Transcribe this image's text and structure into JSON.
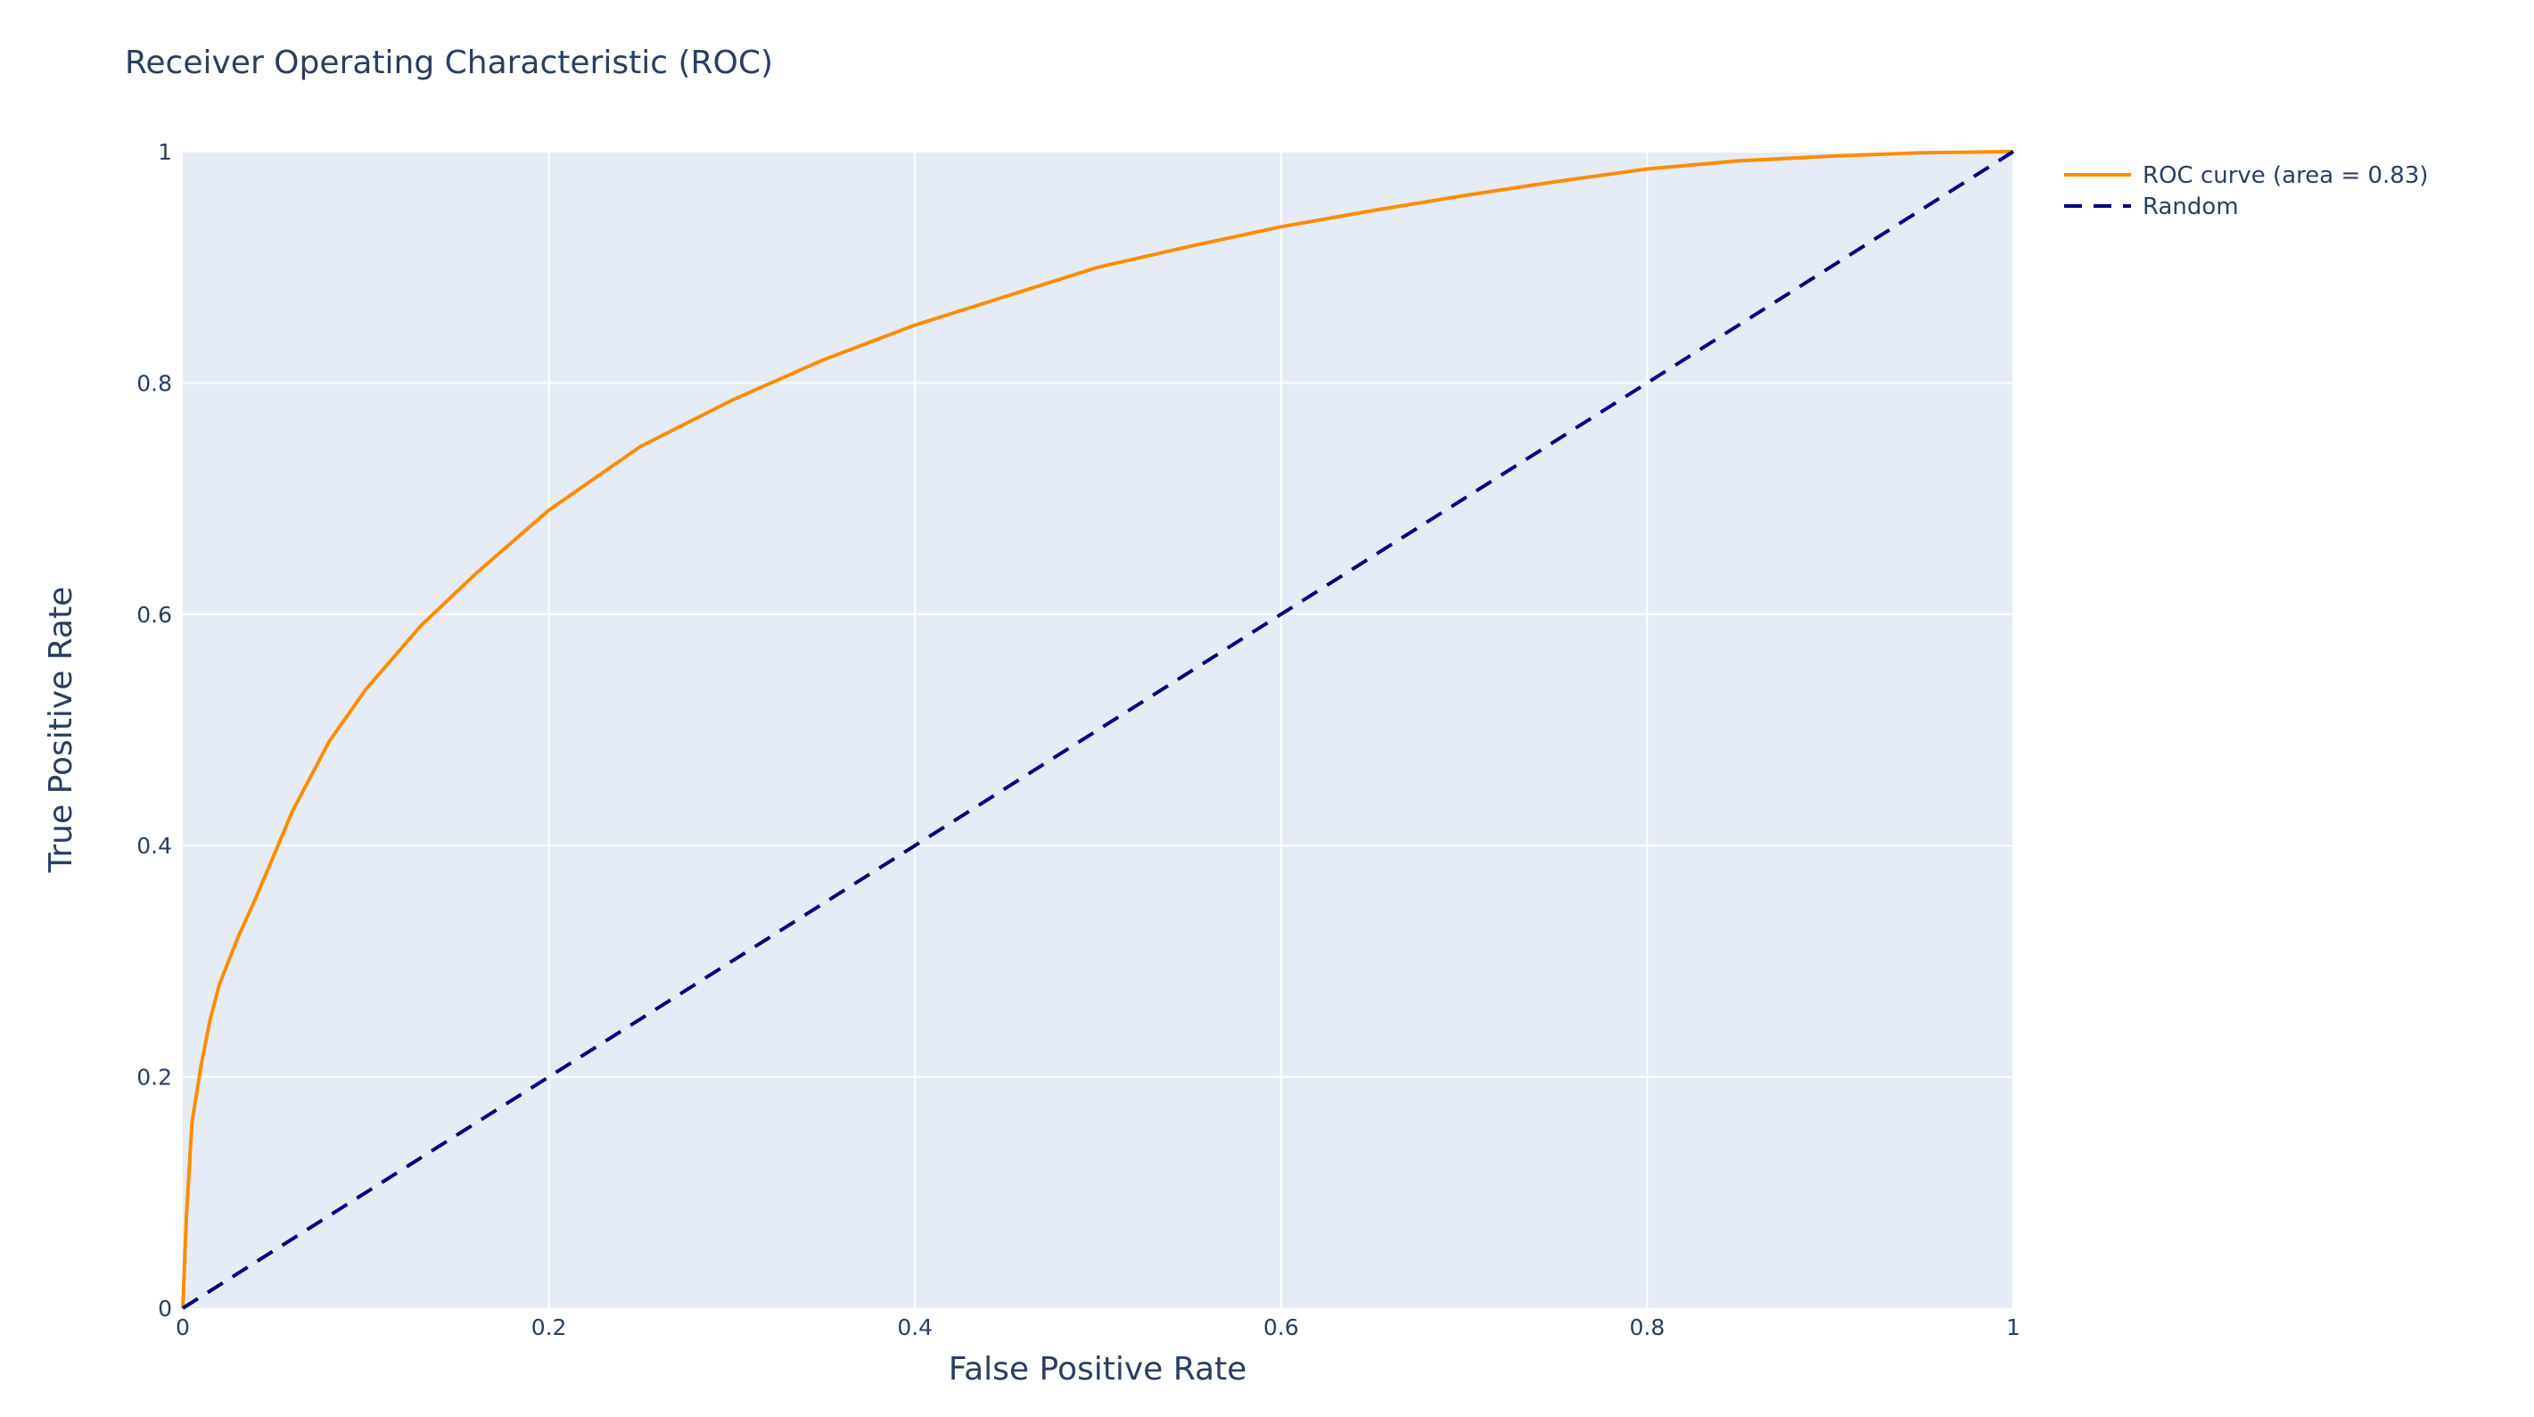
{
  "chart_data": {
    "type": "line",
    "title": "Receiver Operating Characteristic (ROC)",
    "xlabel": "False Positive Rate",
    "ylabel": "True Positive Rate",
    "xlim": [
      0,
      1
    ],
    "ylim": [
      0,
      1
    ],
    "x_ticks": [
      0,
      0.2,
      0.4,
      0.6,
      0.8,
      1
    ],
    "x_tick_labels": [
      "0",
      "0.2",
      "0.4",
      "0.6",
      "0.8",
      "1"
    ],
    "y_ticks": [
      0,
      0.2,
      0.4,
      0.6,
      0.8,
      1
    ],
    "y_tick_labels": [
      "0",
      "0.2",
      "0.4",
      "0.6",
      "0.8",
      "1"
    ],
    "grid": true,
    "legend_position": "top-right, outside plot",
    "plot_background": "#e5ecf6",
    "series": [
      {
        "name": "ROC curve (area = 0.83)",
        "color": "#ff8c00",
        "dash": "solid",
        "x": [
          0,
          0.002,
          0.005,
          0.01,
          0.015,
          0.02,
          0.03,
          0.04,
          0.06,
          0.08,
          0.1,
          0.13,
          0.16,
          0.2,
          0.25,
          0.3,
          0.35,
          0.4,
          0.45,
          0.5,
          0.55,
          0.6,
          0.65,
          0.7,
          0.75,
          0.8,
          0.85,
          0.9,
          0.95,
          1
        ],
        "y": [
          0,
          0.08,
          0.16,
          0.21,
          0.25,
          0.28,
          0.32,
          0.355,
          0.43,
          0.49,
          0.535,
          0.59,
          0.635,
          0.69,
          0.745,
          0.785,
          0.82,
          0.85,
          0.875,
          0.9,
          0.918,
          0.935,
          0.949,
          0.962,
          0.974,
          0.985,
          0.992,
          0.996,
          0.999,
          1
        ]
      },
      {
        "name": "Random",
        "color": "#000080",
        "dash": "dashed",
        "x": [
          0,
          1
        ],
        "y": [
          0,
          1
        ]
      }
    ]
  }
}
